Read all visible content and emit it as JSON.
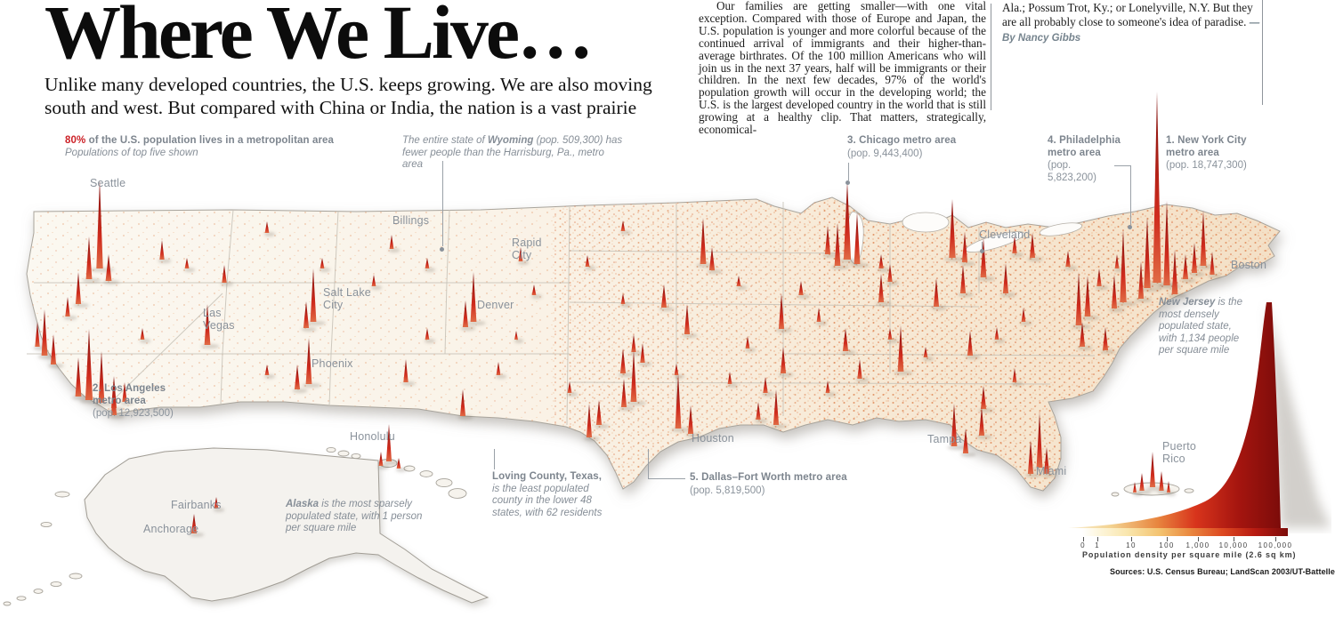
{
  "header": {
    "title": "Where We Live…",
    "subtitle_line1": "Unlike many developed countries, the U.S. keeps growing. We are also moving",
    "subtitle_line2": "south and west. But compared with China or India, the nation is a vast prairie",
    "intro_paragraph": "Our families are getting smaller—with one vital exception. Compared with those of Europe and Japan, the U.S. population is younger and more colorful because of the continued arrival of immigrants and their higher-than-average birthrates. Of the 100 million Americans who will join us in the next 37 years, half will be immigrants or their children. In the next few decades, 97% of the world's population growth will occur in the developing world; the U.S. is the largest developed country in the world that is still growing at a healthy clip. That matters, strategically, economical-",
    "closing_text": "Ala.; Possum Trot, Ky.; or Lonelyville, N.Y. But they are all probably close to someone's idea of paradise.",
    "byline": "—By Nancy Gibbs"
  },
  "callouts": {
    "metro_pct": "80%",
    "metro_text": " of the U.S. population lives in a metropolitan area",
    "metro_sub": "Populations of top five shown",
    "wyoming_pre": "The entire state of ",
    "wyoming_name": "Wyoming",
    "wyoming_post": " (pop. 509,300) has fewer people than the Harrisburg, Pa., metro area",
    "nyc_title": "1. New York City metro area",
    "nyc_pop": "(pop. 18,747,300)",
    "la_title": "2. Los Angeles metro area",
    "la_pop": "(pop. 12,923,500)",
    "chicago_title": "3. Chicago metro area",
    "chicago_pop": "(pop. 9,443,400)",
    "philly_title": "4. Philadelphia metro area",
    "philly_pop": "(pop. 5,823,200)",
    "dallas_title": "5. Dallas–Fort Worth metro area",
    "dallas_pop": "(pop. 5,819,500)",
    "nj_name": "New Jersey",
    "nj_text": " is the most densely populated state, with 1,134 people per square mile",
    "loving_title": "Loving County, Texas,",
    "loving_text": "is the least populated county in the lower 48 states, with 62 residents",
    "alaska_name": "Alaska",
    "alaska_text": " is the most sparsely populated state, with 1 person per square mile"
  },
  "map": {
    "cities": {
      "seattle": "Seattle",
      "billings": "Billings",
      "rapid_city": "Rapid City",
      "salt_lake": "Salt Lake City",
      "denver": "Denver",
      "las_vegas": "Las Vegas",
      "phoenix": "Phoenix",
      "cleveland": "Cleveland",
      "boston": "Boston",
      "houston": "Houston",
      "tampa": "Tampa",
      "miami": "Miami",
      "honolulu": "Honolulu",
      "fairbanks": "Fairbanks",
      "anchorage": "Anchorage",
      "puerto_rico": "Puerto Rico"
    }
  },
  "legend": {
    "ticks": [
      "0",
      "1",
      "10",
      "100",
      "1,000",
      "10,000",
      "100,000"
    ],
    "caption": "Population density per square mile (2.6 sq km)",
    "source": "Sources: U.S. Census Bureau; LandScan 2003/UT-Battelle, LLC"
  },
  "colors": {
    "accent_red": "#cc2127",
    "annotation_gray": "#8a929b",
    "byline_gray_blue": "#76848e",
    "spike_red": "#c0281c"
  }
}
